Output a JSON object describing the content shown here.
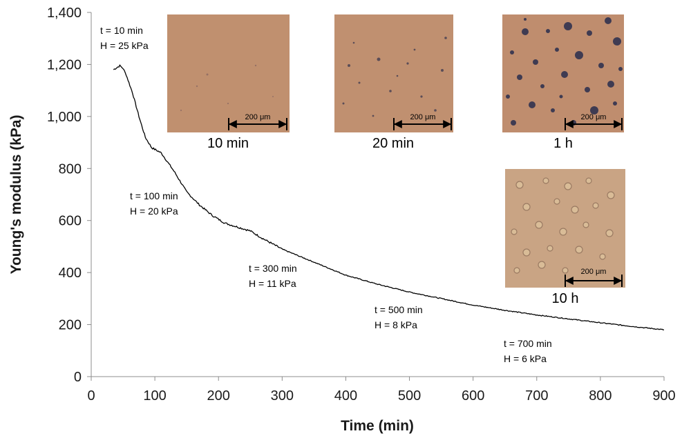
{
  "chart_data": {
    "type": "line",
    "xlabel": "Time (min)",
    "ylabel": "Young's modulus (kPa)",
    "xlim": [
      0,
      900
    ],
    "ylim": [
      0,
      1400
    ],
    "x_ticks": [
      "0",
      "100",
      "200",
      "300",
      "400",
      "500",
      "600",
      "700",
      "800",
      "900"
    ],
    "y_ticks": [
      "0",
      "200",
      "400",
      "600",
      "800",
      "1,000",
      "1,200",
      "1,400"
    ],
    "grid": false,
    "line_color": "#000000",
    "series": [
      {
        "x": [
          35,
          45,
          50,
          55,
          65,
          75,
          85,
          95,
          110,
          130,
          150,
          170,
          190,
          210,
          230,
          250,
          270,
          300,
          350,
          400,
          450,
          500,
          550,
          600,
          650,
          700,
          750,
          800,
          850,
          900
        ],
        "values": [
          1180,
          1195,
          1185,
          1160,
          1090,
          1000,
          920,
          880,
          860,
          790,
          710,
          660,
          620,
          590,
          575,
          560,
          530,
          490,
          440,
          390,
          355,
          325,
          300,
          275,
          255,
          237,
          222,
          207,
          193,
          180
        ]
      }
    ],
    "annotations": [
      {
        "time": "t = 10 min",
        "hardness": "H = 25 kPa"
      },
      {
        "time": "t = 100 min",
        "hardness": "H = 20 kPa"
      },
      {
        "time": "t = 300 min",
        "hardness": "H = 11 kPa"
      },
      {
        "time": "t = 500 min",
        "hardness": "H = 8 kPa"
      },
      {
        "time": "t = 700 min",
        "hardness": "H = 6 kPa"
      }
    ],
    "insets": [
      {
        "caption": "10 min",
        "scale_label": "200 μm"
      },
      {
        "caption": "20 min",
        "scale_label": "200 μm"
      },
      {
        "caption": "1 h",
        "scale_label": "200 μm"
      },
      {
        "caption": "10 h",
        "scale_label": "200 μm"
      }
    ],
    "inset_colors": {
      "tan": "#bf8e6e",
      "tan_light": "#c9a585",
      "dark_spot": "#3d3a52"
    }
  }
}
